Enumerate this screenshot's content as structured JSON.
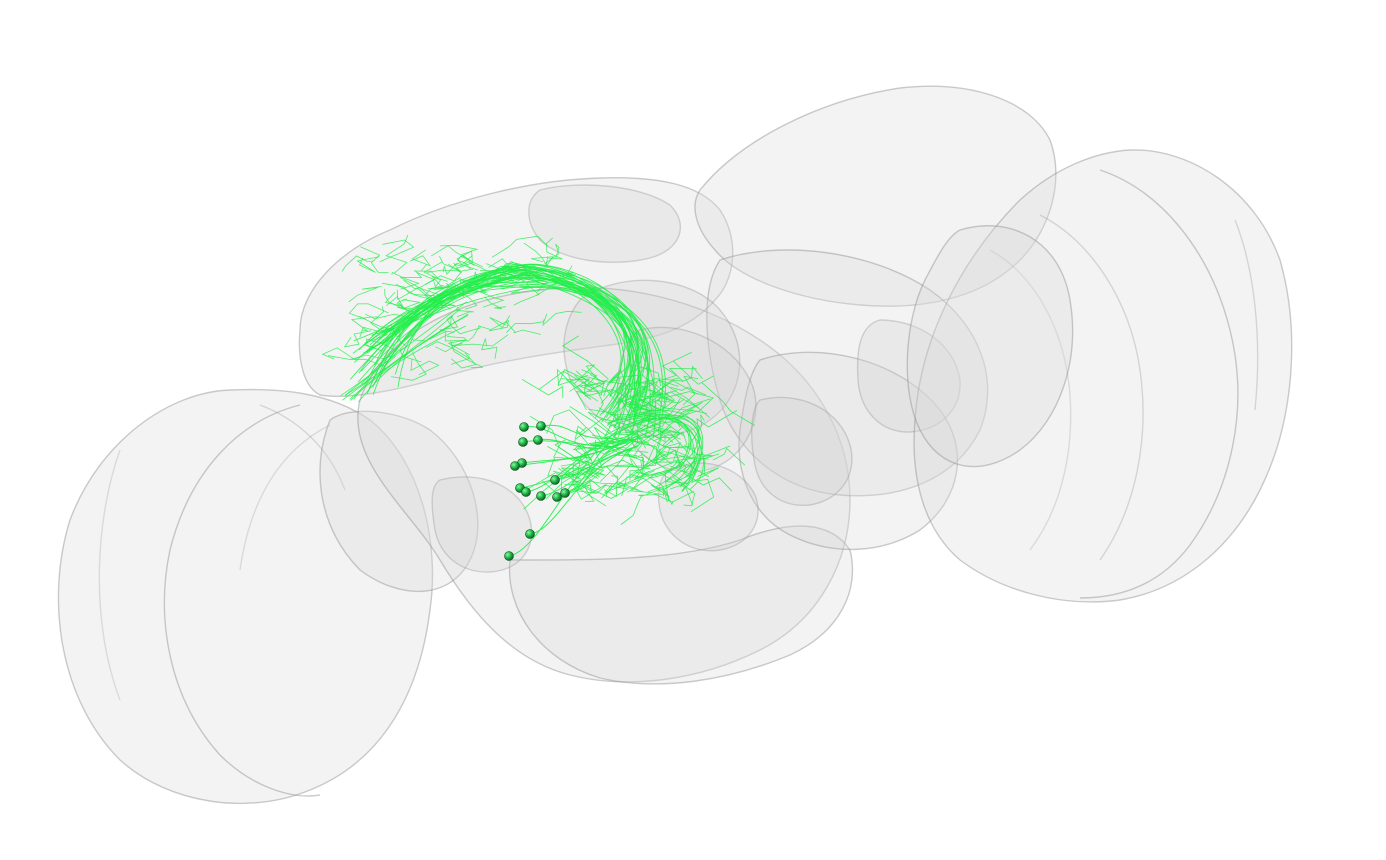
{
  "scene": {
    "background": "#ffffff",
    "brain_fill": "#e6e6e6",
    "brain_edge": "#9c9c9c",
    "neuron_color": "#22ee4a",
    "soma_color": "#1a9e3a"
  },
  "objects": [
    {
      "name": "brain-mesh",
      "kind": "translucent 3D brain volume (left optic lobe, central brain, right optic lobe)"
    },
    {
      "name": "neuron-skeletons",
      "kind": "green neuron arbors projecting from cell bodies to an upper-left tract"
    },
    {
      "name": "neuron-somas",
      "count": 16
    }
  ]
}
